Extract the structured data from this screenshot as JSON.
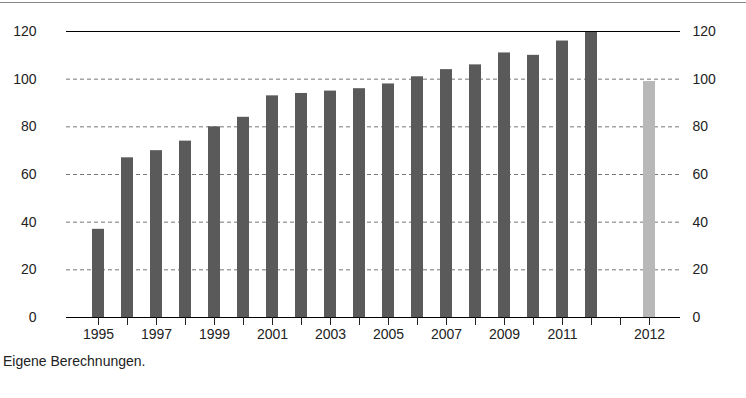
{
  "chart_data": {
    "type": "bar",
    "caption": "Eigene Berechnungen.",
    "categories": [
      "1995",
      null,
      "1997",
      null,
      "1999",
      null,
      "2001",
      null,
      "2003",
      null,
      "2005",
      null,
      "2007",
      null,
      "2009",
      null,
      "2011",
      null,
      null,
      "2012"
    ],
    "values": [
      37,
      67,
      70,
      74,
      80,
      84,
      93,
      94,
      95,
      96,
      98,
      101,
      104,
      106,
      111,
      110,
      116,
      120,
      null,
      99
    ],
    "colors": [
      "#5a5a5a",
      "#5a5a5a",
      "#5a5a5a",
      "#5a5a5a",
      "#5a5a5a",
      "#5a5a5a",
      "#5a5a5a",
      "#5a5a5a",
      "#5a5a5a",
      "#5a5a5a",
      "#5a5a5a",
      "#5a5a5a",
      "#5a5a5a",
      "#5a5a5a",
      "#5a5a5a",
      "#5a5a5a",
      "#5a5a5a",
      "#5a5a5a",
      null,
      "#b8b8b8"
    ],
    "ylim": [
      0,
      120
    ],
    "yticks": [
      0,
      20,
      40,
      60,
      80,
      100,
      120
    ],
    "grid": true
  }
}
